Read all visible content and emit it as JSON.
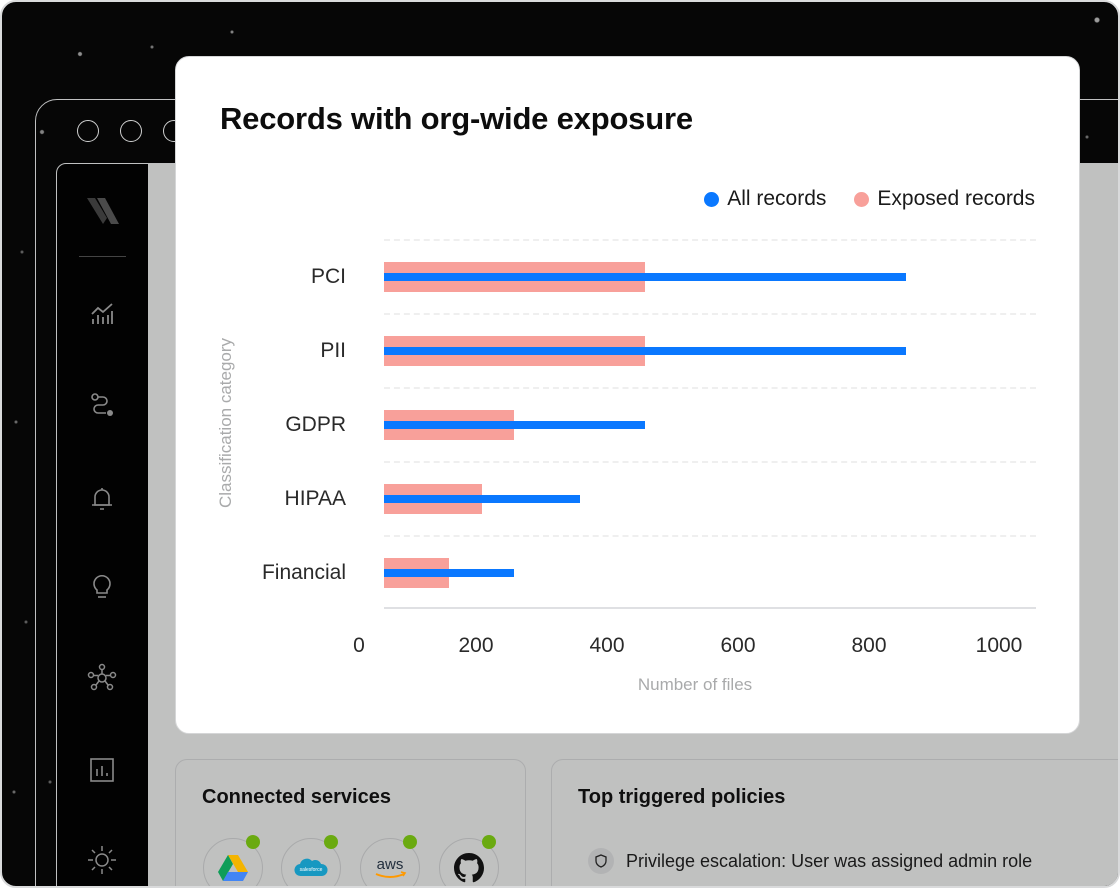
{
  "chart_card": {
    "title": "Records with org-wide exposure"
  },
  "chart_data": {
    "type": "bar",
    "orientation": "horizontal",
    "title": "Records with org-wide exposure",
    "xlabel": "Number of files",
    "ylabel": "Classification category",
    "categories": [
      "PCI",
      "PII",
      "GDPR",
      "HIPAA",
      "Financial"
    ],
    "series": [
      {
        "name": "All records",
        "color": "#0A78FF",
        "values": [
          800,
          800,
          400,
          300,
          200
        ]
      },
      {
        "name": "Exposed records",
        "color": "#F8A09A",
        "values": [
          400,
          400,
          200,
          150,
          100
        ]
      }
    ],
    "xticks": [
      "0",
      "200",
      "400",
      "600",
      "800",
      "1000"
    ],
    "xlim": [
      0,
      1000
    ],
    "grid": "horizontal dashed",
    "legend_position": "top-right"
  },
  "legend": [
    {
      "label": "All records",
      "color": "#0A78FF"
    },
    {
      "label": "Exposed records",
      "color": "#F8A09A"
    }
  ],
  "sidebar": {
    "items": [
      {
        "icon": "analytics-icon"
      },
      {
        "icon": "workflow-icon"
      },
      {
        "icon": "bell-icon"
      },
      {
        "icon": "lightbulb-icon"
      },
      {
        "icon": "network-icon"
      },
      {
        "icon": "report-icon"
      },
      {
        "icon": "sun-icon"
      }
    ]
  },
  "connected_services": {
    "title": "Connected services",
    "services": [
      {
        "name": "Google Drive",
        "status": "connected"
      },
      {
        "name": "salesforce",
        "status": "connected"
      },
      {
        "name": "aws",
        "status": "connected"
      },
      {
        "name": "GitHub",
        "status": "connected"
      }
    ]
  },
  "policies": {
    "title": "Top triggered policies",
    "items": [
      {
        "label": "Privilege escalation: User was assigned admin role"
      }
    ]
  }
}
